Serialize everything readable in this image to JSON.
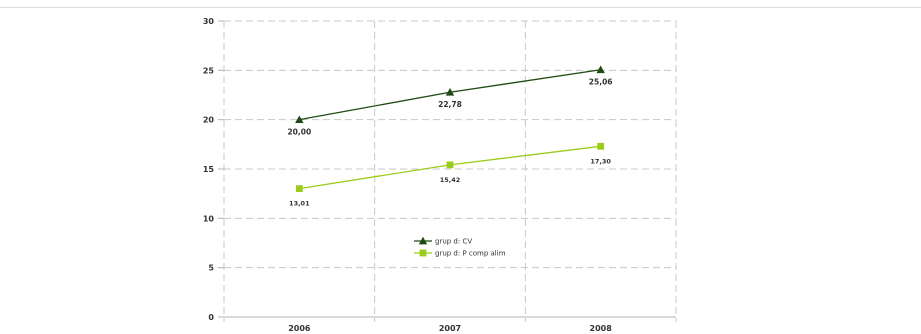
{
  "chart_data": {
    "type": "line",
    "title": "",
    "xlabel": "",
    "ylabel": "",
    "categories": [
      "2006",
      "2007",
      "2008"
    ],
    "ylim": [
      0,
      30
    ],
    "yticks": [
      0,
      5,
      10,
      15,
      20,
      25,
      30
    ],
    "grid": true,
    "legend_position": "center",
    "series": [
      {
        "name": "grup d: CV",
        "values": [
          20.0,
          22.78,
          25.06
        ],
        "labels": [
          "20,00",
          "22,78",
          "25,06"
        ],
        "color": "#1f4a12",
        "marker": "triangle"
      },
      {
        "name": "grup d: P comp alim",
        "values": [
          13.01,
          15.42,
          17.3
        ],
        "labels": [
          "13,01",
          "15,42",
          "17,30"
        ],
        "color": "#9acd1a",
        "marker": "square"
      }
    ]
  }
}
